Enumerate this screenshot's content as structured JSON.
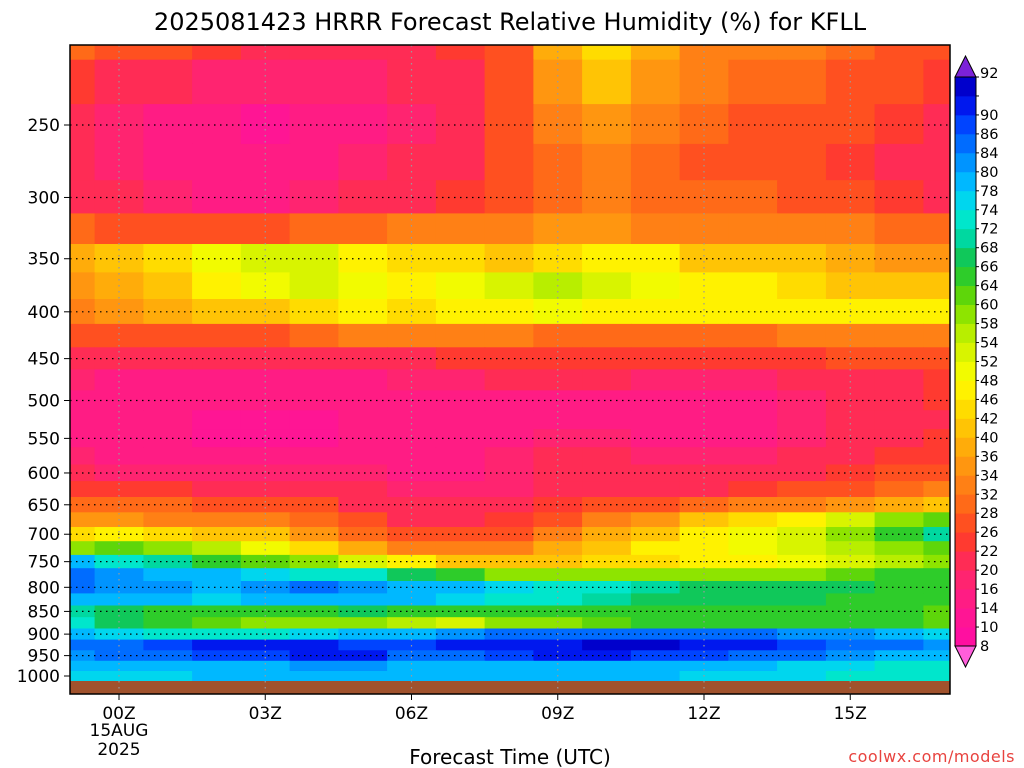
{
  "chart_data": {
    "type": "heatmap",
    "title": "2025081423 HRRR Forecast Relative Humidity (%) for KFLL",
    "xlabel": "Forecast Time (UTC)",
    "ylabel": "",
    "x_ticks": [
      "00Z",
      "03Z",
      "06Z",
      "09Z",
      "12Z",
      "15Z"
    ],
    "x_date_label": [
      "15AUG",
      "2025"
    ],
    "x_hours": [
      -1,
      0,
      1,
      2,
      3,
      4,
      5,
      6,
      7,
      8,
      9,
      10,
      11,
      12,
      13,
      14,
      15,
      16,
      17
    ],
    "y_ticks": [
      250,
      300,
      350,
      400,
      450,
      500,
      550,
      600,
      650,
      700,
      750,
      800,
      850,
      900,
      950,
      1000
    ],
    "y_levels": [
      200,
      225,
      250,
      275,
      300,
      325,
      350,
      375,
      400,
      425,
      450,
      475,
      500,
      525,
      550,
      575,
      600,
      625,
      650,
      675,
      700,
      725,
      750,
      775,
      800,
      825,
      850,
      875,
      900,
      925,
      950,
      975,
      1000
    ],
    "grid": true,
    "y_scale": "log",
    "ylim": [
      1000,
      200
    ],
    "colorbar_levels": [
      8,
      10,
      14,
      16,
      20,
      22,
      26,
      28,
      32,
      34,
      36,
      40,
      42,
      46,
      48,
      52,
      54,
      58,
      60,
      64,
      66,
      68,
      72,
      74,
      78,
      80,
      84,
      86,
      90,
      92
    ],
    "colorbar_colors": [
      "#ff0fa0",
      "#ff1594",
      "#ff1c84",
      "#ff2470",
      "#ff2c55",
      "#ff3a30",
      "#ff5020",
      "#ff6a18",
      "#ff8015",
      "#ff9610",
      "#ffac0a",
      "#ffc405",
      "#ffdc00",
      "#fff200",
      "#f2fb00",
      "#d8f400",
      "#b8ee00",
      "#8ee400",
      "#5ed60a",
      "#2ecc2a",
      "#10c85a",
      "#00d8a0",
      "#00e6cc",
      "#00d6ee",
      "#00b8ff",
      "#0094ff",
      "#006cff",
      "#0044ff",
      "#0018ee",
      "#0000cc"
    ],
    "ground_color": "#a0522d",
    "rh_grid": [
      [
        28,
        26,
        24,
        22,
        20,
        20,
        20,
        20,
        22,
        26,
        36,
        42,
        36,
        32,
        30,
        30,
        28,
        26,
        26
      ],
      [
        22,
        20,
        18,
        16,
        16,
        16,
        16,
        18,
        20,
        26,
        34,
        40,
        34,
        30,
        28,
        28,
        26,
        24,
        22
      ],
      [
        18,
        16,
        14,
        12,
        10,
        12,
        14,
        16,
        18,
        24,
        30,
        34,
        30,
        28,
        26,
        26,
        24,
        22,
        20
      ],
      [
        18,
        16,
        14,
        12,
        12,
        14,
        16,
        18,
        20,
        24,
        28,
        30,
        28,
        26,
        26,
        24,
        22,
        20,
        20
      ],
      [
        20,
        18,
        16,
        14,
        14,
        16,
        18,
        20,
        22,
        24,
        28,
        30,
        28,
        28,
        28,
        26,
        24,
        22,
        20
      ],
      [
        28,
        26,
        24,
        24,
        26,
        28,
        28,
        30,
        32,
        32,
        34,
        34,
        32,
        30,
        30,
        30,
        30,
        28,
        28
      ],
      [
        36,
        38,
        42,
        48,
        52,
        50,
        46,
        42,
        42,
        40,
        42,
        44,
        44,
        40,
        38,
        38,
        36,
        34,
        34
      ],
      [
        34,
        36,
        40,
        44,
        48,
        50,
        48,
        46,
        48,
        52,
        54,
        52,
        48,
        46,
        44,
        42,
        40,
        38,
        38
      ],
      [
        32,
        34,
        36,
        38,
        40,
        42,
        44,
        42,
        44,
        46,
        48,
        46,
        44,
        44,
        44,
        46,
        46,
        44,
        44
      ],
      [
        26,
        26,
        26,
        26,
        26,
        28,
        30,
        30,
        30,
        30,
        28,
        28,
        28,
        28,
        28,
        30,
        32,
        32,
        30
      ],
      [
        20,
        20,
        20,
        20,
        20,
        20,
        20,
        20,
        22,
        22,
        22,
        22,
        22,
        22,
        22,
        22,
        24,
        26,
        26
      ],
      [
        16,
        14,
        14,
        12,
        14,
        14,
        14,
        16,
        16,
        18,
        18,
        18,
        16,
        16,
        16,
        18,
        18,
        20,
        22
      ],
      [
        14,
        12,
        12,
        12,
        12,
        12,
        12,
        14,
        14,
        14,
        14,
        14,
        14,
        14,
        14,
        16,
        18,
        20,
        22
      ],
      [
        14,
        12,
        12,
        10,
        10,
        10,
        12,
        12,
        14,
        14,
        14,
        14,
        14,
        14,
        14,
        16,
        18,
        20,
        20
      ],
      [
        14,
        12,
        12,
        10,
        10,
        10,
        12,
        12,
        14,
        14,
        16,
        16,
        14,
        14,
        14,
        16,
        18,
        20,
        22
      ],
      [
        16,
        14,
        14,
        14,
        14,
        14,
        14,
        14,
        14,
        16,
        18,
        18,
        16,
        16,
        16,
        18,
        20,
        22,
        22
      ],
      [
        18,
        16,
        16,
        16,
        16,
        16,
        16,
        14,
        14,
        16,
        18,
        18,
        18,
        18,
        18,
        20,
        22,
        24,
        26
      ],
      [
        22,
        22,
        22,
        20,
        20,
        20,
        18,
        16,
        16,
        16,
        18,
        20,
        20,
        20,
        22,
        24,
        26,
        28,
        30
      ],
      [
        28,
        28,
        28,
        26,
        26,
        24,
        20,
        18,
        18,
        20,
        22,
        24,
        26,
        28,
        30,
        32,
        34,
        36,
        40
      ],
      [
        34,
        34,
        32,
        32,
        30,
        28,
        24,
        20,
        20,
        22,
        26,
        30,
        34,
        38,
        42,
        46,
        50,
        56,
        60
      ],
      [
        42,
        44,
        42,
        40,
        38,
        34,
        28,
        24,
        24,
        26,
        30,
        36,
        40,
        44,
        48,
        52,
        58,
        64,
        68
      ],
      [
        58,
        60,
        58,
        54,
        48,
        42,
        36,
        30,
        30,
        32,
        36,
        40,
        44,
        46,
        48,
        50,
        54,
        58,
        60
      ],
      [
        76,
        72,
        68,
        64,
        60,
        56,
        50,
        44,
        40,
        38,
        40,
        42,
        42,
        44,
        46,
        48,
        50,
        54,
        58
      ],
      [
        84,
        80,
        78,
        76,
        74,
        72,
        70,
        66,
        62,
        58,
        56,
        56,
        56,
        56,
        56,
        58,
        60,
        62,
        64
      ],
      [
        82,
        80,
        80,
        78,
        80,
        82,
        80,
        78,
        76,
        74,
        72,
        70,
        68,
        66,
        66,
        66,
        66,
        64,
        62
      ],
      [
        78,
        76,
        76,
        74,
        76,
        78,
        78,
        76,
        74,
        72,
        70,
        68,
        66,
        66,
        66,
        66,
        64,
        62,
        62
      ],
      [
        68,
        66,
        64,
        64,
        64,
        64,
        66,
        64,
        64,
        62,
        62,
        62,
        62,
        62,
        62,
        62,
        62,
        62,
        60
      ],
      [
        70,
        66,
        62,
        60,
        58,
        56,
        56,
        54,
        52,
        56,
        58,
        60,
        62,
        62,
        62,
        62,
        62,
        62,
        60
      ],
      [
        76,
        74,
        72,
        72,
        72,
        74,
        76,
        78,
        80,
        82,
        84,
        84,
        84,
        82,
        82,
        80,
        80,
        78,
        74
      ],
      [
        84,
        84,
        86,
        88,
        88,
        88,
        86,
        86,
        88,
        90,
        90,
        92,
        92,
        90,
        88,
        86,
        84,
        82,
        80
      ],
      [
        80,
        82,
        84,
        86,
        86,
        88,
        88,
        84,
        84,
        86,
        88,
        88,
        86,
        86,
        84,
        82,
        80,
        78,
        76
      ],
      [
        76,
        76,
        76,
        78,
        78,
        80,
        80,
        78,
        78,
        78,
        78,
        78,
        78,
        76,
        76,
        74,
        74,
        72,
        70
      ],
      [
        74,
        74,
        74,
        76,
        76,
        76,
        76,
        76,
        76,
        76,
        76,
        76,
        76,
        74,
        74,
        74,
        72,
        70,
        70
      ]
    ],
    "annotations": [
      "coolwx.com/models"
    ]
  }
}
